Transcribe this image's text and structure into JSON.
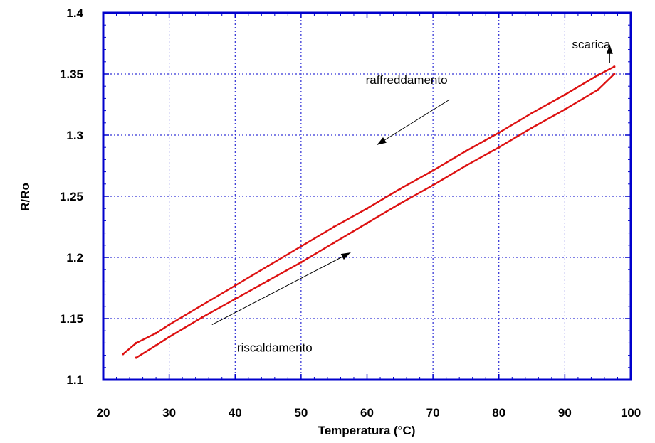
{
  "chart_data": {
    "type": "scatter",
    "xlabel": "Temperatura (°C)",
    "ylabel": "R/Ro",
    "xlim": [
      20,
      100
    ],
    "ylim": [
      1.1,
      1.4
    ],
    "xticks": [
      "20",
      "30",
      "40",
      "50",
      "60",
      "70",
      "80",
      "90",
      "100"
    ],
    "yticks": [
      "1.1",
      "1.15",
      "1.2",
      "1.25",
      "1.3",
      "1.35",
      "1.4"
    ],
    "grid": true,
    "series": [
      {
        "color": "#dd1111",
        "x": [
          23.0,
          25,
          28,
          30,
          35,
          40,
          45,
          50,
          55,
          60,
          65,
          70,
          75,
          80,
          85,
          90,
          95,
          97.5
        ],
        "y": [
          1.121,
          1.13,
          1.138,
          1.145,
          1.161,
          1.177,
          1.193,
          1.209,
          1.225,
          1.24,
          1.256,
          1.271,
          1.287,
          1.302,
          1.318,
          1.333,
          1.349,
          1.356
        ]
      },
      {
        "color": "#dd1111",
        "x": [
          25.0,
          28,
          30,
          35,
          40,
          45,
          50,
          55,
          60,
          65,
          70,
          75,
          80,
          85,
          90,
          95,
          97.5
        ],
        "y": [
          1.118,
          1.128,
          1.135,
          1.151,
          1.166,
          1.181,
          1.196,
          1.212,
          1.228,
          1.244,
          1.259,
          1.275,
          1.29,
          1.306,
          1.321,
          1.337,
          1.35
        ]
      }
    ],
    "annotations": [
      {
        "text": "raffreddamento",
        "x": 66,
        "y": 1.342,
        "arrow_from": [
          72.5,
          1.329
        ],
        "arrow_to": [
          61.5,
          1.292
        ]
      },
      {
        "text": "riscaldamento",
        "x": 46,
        "y": 1.123,
        "arrow_from": [
          36.5,
          1.145
        ],
        "arrow_to": [
          57.5,
          1.204
        ]
      },
      {
        "text": "scarica",
        "x": 94,
        "y": 1.371,
        "arrow_from": [
          96.8,
          1.359
        ],
        "arrow_to": [
          96.8,
          1.374
        ]
      }
    ],
    "colors": {
      "axis": "#0000cc",
      "grid": "#0000cc",
      "data": "#dd1111"
    }
  }
}
